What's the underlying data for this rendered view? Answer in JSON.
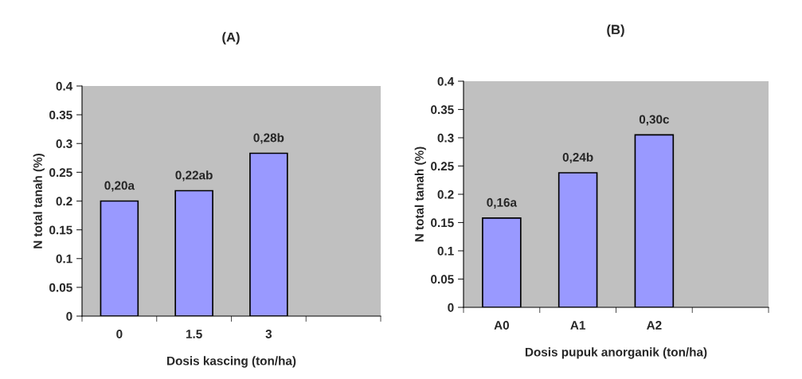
{
  "chart_data": [
    {
      "type": "bar",
      "title": "(A)",
      "xlabel": "Dosis kascing (ton/ha)",
      "ylabel": "N total tanah (%)",
      "categories": [
        "0",
        "1.5",
        "3",
        null
      ],
      "series": [
        {
          "color": "#9999ff",
          "values": [
            0.2,
            0.218,
            0.283,
            null
          ],
          "value_labels": [
            "0,20a",
            "0,22ab",
            "0,28b",
            null
          ]
        }
      ],
      "ylim": [
        0,
        0.4
      ],
      "yticks": [
        0,
        0.05,
        0.1,
        0.15,
        0.2,
        0.25,
        0.3,
        0.35,
        0.4
      ],
      "grid": false,
      "legend": false
    },
    {
      "type": "bar",
      "title": "(B)",
      "xlabel": "Dosis pupuk anorganik (ton/ha)",
      "ylabel": "N total tanah (%)",
      "categories": [
        "A0",
        "A1",
        "A2",
        null
      ],
      "series": [
        {
          "color": "#9999ff",
          "values": [
            0.158,
            0.238,
            0.305,
            null
          ],
          "value_labels": [
            "0,16a",
            "0,24b",
            "0,30c",
            null
          ]
        }
      ],
      "ylim": [
        0,
        0.4
      ],
      "yticks": [
        0,
        0.05,
        0.1,
        0.15,
        0.2,
        0.25,
        0.3,
        0.35,
        0.4
      ],
      "grid": false,
      "legend": false
    }
  ]
}
